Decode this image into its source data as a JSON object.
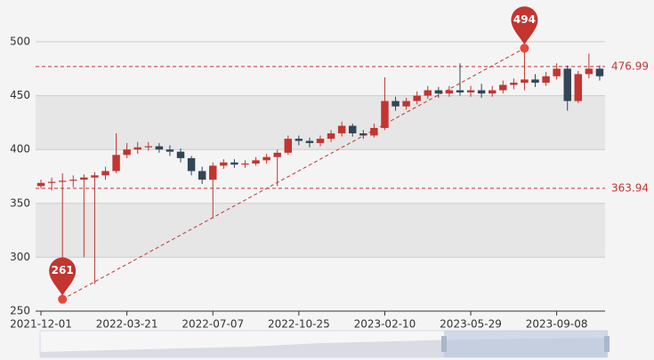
{
  "chart_data": {
    "type": "candlestick",
    "categories": [
      "2021-12-01",
      null,
      null,
      null,
      null,
      null,
      null,
      null,
      "2022-03-21",
      null,
      null,
      null,
      null,
      null,
      null,
      null,
      "2022-07-07",
      null,
      null,
      null,
      null,
      null,
      null,
      null,
      "2022-10-25",
      null,
      null,
      null,
      null,
      null,
      null,
      null,
      "2023-02-10",
      null,
      null,
      null,
      null,
      null,
      null,
      null,
      "2023-05-29",
      null,
      null,
      null,
      null,
      null,
      null,
      null,
      "2023-09-08",
      null,
      null,
      null,
      null
    ],
    "series": [
      {
        "up_color": "#c23531",
        "down_color": "#314656",
        "values": [
          [
            366,
            369,
            364,
            372
          ],
          [
            369,
            370,
            362,
            374
          ],
          [
            370,
            371,
            261,
            378
          ],
          [
            371,
            372,
            365,
            376
          ],
          [
            372,
            374,
            300,
            377
          ],
          [
            374,
            376,
            275,
            379
          ],
          [
            376,
            380,
            372,
            384
          ],
          [
            380,
            395,
            378,
            415
          ],
          [
            395,
            400,
            392,
            406
          ],
          [
            400,
            402,
            396,
            407
          ],
          [
            402,
            403,
            399,
            407
          ],
          [
            403,
            400,
            397,
            406
          ],
          [
            400,
            398,
            394,
            404
          ],
          [
            398,
            392,
            388,
            401
          ],
          [
            392,
            380,
            376,
            394
          ],
          [
            380,
            372,
            368,
            384
          ],
          [
            372,
            385,
            336,
            388
          ],
          [
            385,
            388,
            382,
            391
          ],
          [
            388,
            386,
            383,
            391
          ],
          [
            386,
            387,
            383,
            390
          ],
          [
            387,
            390,
            385,
            393
          ],
          [
            390,
            393,
            387,
            396
          ],
          [
            393,
            397,
            366,
            400
          ],
          [
            397,
            410,
            395,
            413
          ],
          [
            410,
            408,
            404,
            413
          ],
          [
            408,
            406,
            402,
            411
          ],
          [
            406,
            410,
            403,
            413
          ],
          [
            410,
            415,
            407,
            418
          ],
          [
            415,
            422,
            412,
            426
          ],
          [
            422,
            415,
            412,
            424
          ],
          [
            415,
            413,
            410,
            418
          ],
          [
            413,
            420,
            411,
            424
          ],
          [
            420,
            445,
            418,
            467
          ],
          [
            445,
            440,
            436,
            449
          ],
          [
            440,
            445,
            437,
            448
          ],
          [
            445,
            450,
            442,
            454
          ],
          [
            450,
            455,
            447,
            459
          ],
          [
            455,
            452,
            448,
            458
          ],
          [
            452,
            455,
            449,
            459
          ],
          [
            455,
            453,
            450,
            480
          ],
          [
            453,
            455,
            449,
            459
          ],
          [
            455,
            452,
            448,
            461
          ],
          [
            452,
            455,
            449,
            459
          ],
          [
            455,
            460,
            452,
            464
          ],
          [
            460,
            462,
            456,
            466
          ],
          [
            462,
            465,
            455,
            494
          ],
          [
            465,
            462,
            458,
            470
          ],
          [
            462,
            468,
            459,
            472
          ],
          [
            468,
            475,
            465,
            480
          ],
          [
            475,
            445,
            436,
            478
          ],
          [
            445,
            470,
            443,
            473
          ],
          [
            470,
            475,
            466,
            489
          ],
          [
            475,
            468,
            464,
            478
          ]
        ]
      }
    ],
    "mark_lines": [
      476.99,
      363.94
    ],
    "ylim": [
      250,
      500
    ],
    "yticks": [
      250,
      300,
      350,
      400,
      450,
      500
    ],
    "split_area": true
  }
}
